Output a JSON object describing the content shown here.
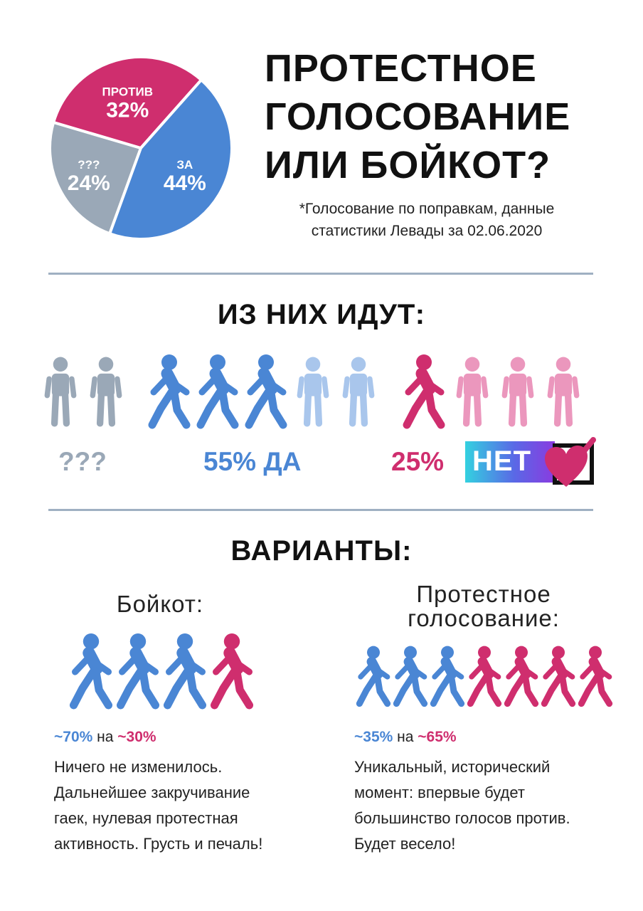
{
  "title_lines": [
    "ПРОТЕСТНОЕ",
    "ГОЛОСОВАНИЕ",
    "ИЛИ БОЙКОТ?"
  ],
  "note_lines": [
    "*Голосование по поправкам, данные",
    "статистики Левады за 02.06.2020"
  ],
  "chart_data": {
    "type": "pie",
    "title": "",
    "slices": [
      {
        "label": "???",
        "value": 24,
        "display": "24%",
        "color": "#9aa8b7"
      },
      {
        "label": "ПРОТИВ",
        "value": 32,
        "display": "32%",
        "color": "#cf2e6e"
      },
      {
        "label": "ЗА",
        "value": 44,
        "display": "44%",
        "color": "#4a86d4"
      }
    ]
  },
  "section1": {
    "heading": "ИЗ НИХ ИДУТ:",
    "unknown_label": "???",
    "yes_label": "55% ДА",
    "no_percent": "25%",
    "no_badge": "НЕТ"
  },
  "section2": {
    "heading": "ВАРИАНТЫ:",
    "boycott": {
      "title": "Бойкот:",
      "ratio_a": "~70%",
      "ratio_mid": "на",
      "ratio_b": "~30%",
      "lines": [
        "Ничего не изменилось.",
        "Дальнейшее закручивание",
        "гаек, нулевая протестная",
        "активность. Грусть и печаль!"
      ]
    },
    "protest": {
      "title_lines": [
        "Протестное",
        "голосование:"
      ],
      "ratio_a": "~35%",
      "ratio_mid": "на",
      "ratio_b": "~65%",
      "lines": [
        "Уникальный, исторический",
        "момент: впервые будет",
        "большинство голосов против.",
        "Будет весело!"
      ]
    }
  },
  "colors": {
    "gray": "#9aa8b7",
    "blue": "#4a86d4",
    "light_blue": "#a9c6ec",
    "pink": "#cf2e6e",
    "light_pink": "#eb97bd"
  }
}
